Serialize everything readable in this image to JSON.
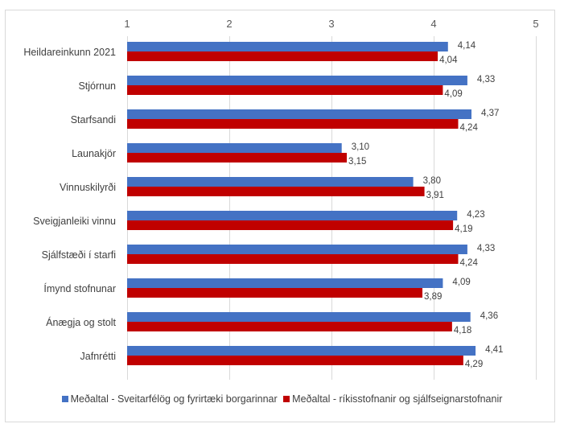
{
  "chart_data": {
    "type": "bar",
    "orientation": "horizontal",
    "title": "",
    "xlabel": "",
    "ylabel": "",
    "xlim": [
      1,
      5
    ],
    "x_ticks": [
      "1",
      "2",
      "3",
      "4",
      "5"
    ],
    "x_tick_values": [
      1,
      2,
      3,
      4,
      5
    ],
    "x_axis_position": "top",
    "grid": true,
    "legend_position": "bottom",
    "categories": [
      "Heildareinkunn 2021",
      "Stjórnun",
      "Starfsandi",
      "Launakjör",
      "Vinnuskilyrði",
      "Sveigjanleiki vinnu",
      "Sjálfstæði í starfi",
      "Ímynd stofnunar",
      "Ánægja og stolt",
      "Jafnrétti"
    ],
    "series": [
      {
        "name": "Meðaltal - Sveitarfélög og fyrirtæki borgarinnar",
        "color": "#4472c4",
        "values": [
          4.14,
          4.33,
          4.37,
          3.1,
          3.8,
          4.23,
          4.33,
          4.09,
          4.36,
          4.41
        ],
        "labels": [
          "4,14",
          "4,33",
          "4,37",
          "3,10",
          "3,80",
          "4,23",
          "4,33",
          "4,09",
          "4,36",
          "4,41"
        ]
      },
      {
        "name": "Meðaltal - ríkisstofnanir og sjálfseignarstofnanir",
        "color": "#c00000",
        "values": [
          4.04,
          4.09,
          4.24,
          3.15,
          3.91,
          4.19,
          4.24,
          3.89,
          4.18,
          4.29
        ],
        "labels": [
          "4,04",
          "4,09",
          "4,24",
          "3,15",
          "3,91",
          "4,19",
          "4,24",
          "3,89",
          "4,18",
          "4,29"
        ]
      }
    ]
  },
  "legend": {
    "items": [
      {
        "label": "Meðaltal - Sveitarfélög og fyrirtæki borgarinnar",
        "color": "#4472c4"
      },
      {
        "label": "Meðaltal - ríkisstofnanir og sjálfseignarstofnanir",
        "color": "#c00000"
      }
    ]
  }
}
